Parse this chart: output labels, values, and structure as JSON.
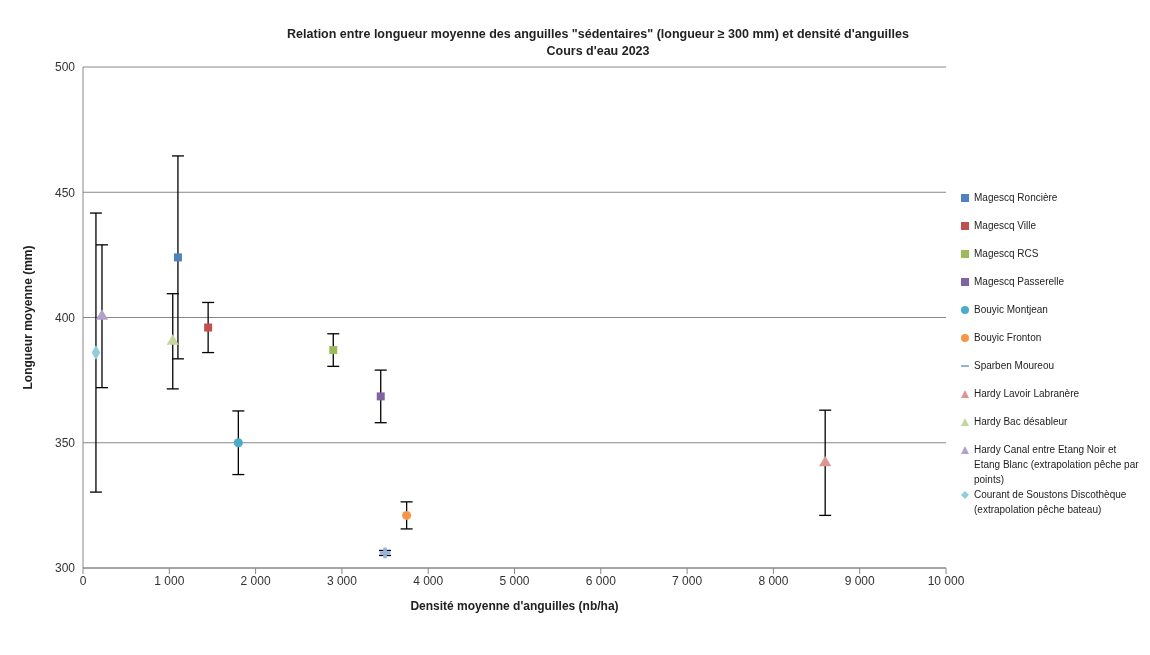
{
  "chart_data": {
    "type": "scatter",
    "title": "Relation entre longueur moyenne des anguilles \"sédentaires\" (longueur ≥ 300 mm) et densité d'anguilles",
    "subtitle": "Cours d'eau 2023",
    "xlabel": "Densité moyenne d'anguilles (nb/ha)",
    "ylabel": "Longueur moyenne (mm)",
    "xlim": [
      0,
      10000
    ],
    "xticks": [
      0,
      {
        "value": 1000,
        "label": "1 000"
      },
      {
        "value": 2000,
        "label": "2 000"
      },
      {
        "value": 3000,
        "label": "3 000"
      },
      {
        "value": 4000,
        "label": "4 000"
      },
      {
        "value": 5000,
        "label": "5 000"
      },
      {
        "value": 6000,
        "label": "6 000"
      },
      {
        "value": 7000,
        "label": "7 000"
      },
      {
        "value": 8000,
        "label": "8 000"
      },
      {
        "value": 9000,
        "label": "9 000"
      },
      {
        "value": 10000,
        "label": "10 000"
      }
    ],
    "ylim": [
      300,
      500
    ],
    "yticks": [
      300,
      350,
      400,
      450,
      500
    ],
    "grid": "y",
    "legend": "right",
    "series": [
      {
        "name": "Magescq Roncière",
        "color": "#4f81bd",
        "marker": "square",
        "x": [
          1100
        ],
        "values": [
          424
        ],
        "errors": [
          40.5
        ]
      },
      {
        "name": "Magescq Ville",
        "color": "#c0504d",
        "marker": "square",
        "x": [
          1450
        ],
        "values": [
          396
        ],
        "errors": [
          10
        ]
      },
      {
        "name": "Magescq RCS",
        "color": "#9bbb59",
        "marker": "square",
        "x": [
          2900
        ],
        "values": [
          387
        ],
        "errors": [
          6.5
        ]
      },
      {
        "name": "Magescq Passerelle",
        "color": "#8064a2",
        "marker": "square",
        "x": [
          3450
        ],
        "values": [
          368.5
        ],
        "errors": [
          10.5
        ]
      },
      {
        "name": "Bouyic Montjean",
        "color": "#4bacc6",
        "marker": "circle",
        "x": [
          1800
        ],
        "values": [
          350
        ],
        "errors": [
          12.7
        ]
      },
      {
        "name": "Bouyic Fronton",
        "color": "#f79646",
        "marker": "circle",
        "x": [
          3750
        ],
        "values": [
          321
        ],
        "errors": [
          5.4
        ]
      },
      {
        "name": "Sparben Moureou",
        "color": "#95b3d7",
        "marker": "cross",
        "x": [
          3500
        ],
        "values": [
          306
        ],
        "errors": [
          1
        ]
      },
      {
        "name": "Hardy Lavoir Labranère",
        "color": "#d99694",
        "marker": "triangle",
        "x": [
          8600
        ],
        "values": [
          342
        ],
        "errors": [
          21
        ]
      },
      {
        "name": "Hardy Bac désableur",
        "color": "#c3d69b",
        "marker": "triangle",
        "x": [
          1040
        ],
        "values": [
          390.5
        ],
        "errors": [
          19
        ]
      },
      {
        "name": "Hardy Canal entre Etang Noir et Etang Blanc (extrapolation pêche par points)",
        "color": "#b3a2c7",
        "marker": "triangle",
        "x": [
          220
        ],
        "values": [
          400.5
        ],
        "errors": [
          28.5
        ]
      },
      {
        "name": "Courant de Soustons Discothèque (extrapolation pêche bateau)",
        "color": "#93cddd",
        "marker": "diamond",
        "x": [
          150
        ],
        "values": [
          386
        ],
        "errors": [
          55.7
        ]
      }
    ]
  }
}
